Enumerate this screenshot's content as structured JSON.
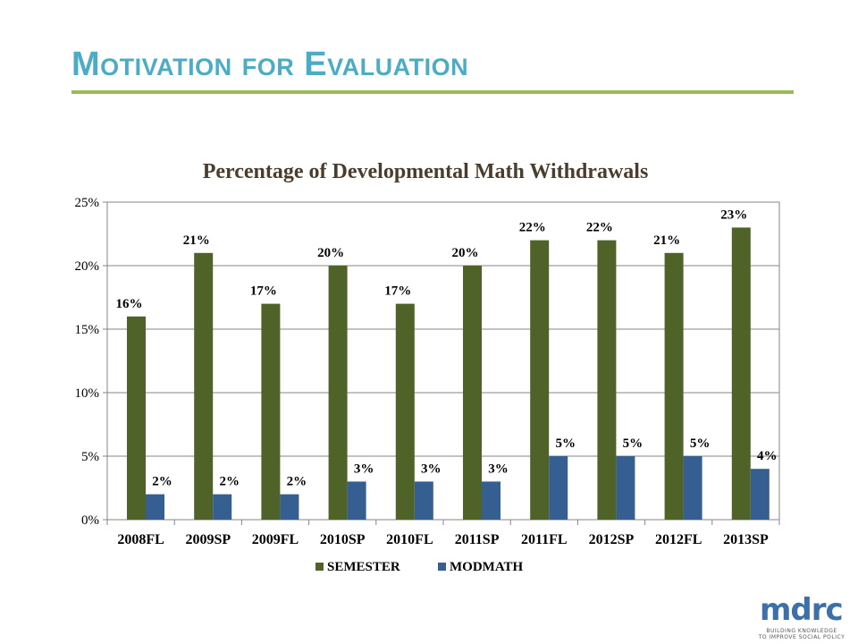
{
  "slide": {
    "title": "Motivation for Evaluation"
  },
  "logo": {
    "word": "mdrc",
    "tagline_1": "BUILDING KNOWLEDGE",
    "tagline_2": "TO IMPROVE SOCIAL POLICY"
  },
  "colors": {
    "title": "#4bacc6",
    "rule": "#9bbb59",
    "semester": "#4f6228",
    "modmath": "#365f91"
  },
  "chart_data": {
    "type": "bar",
    "title": "Percentage of  Developmental Math Withdrawals",
    "categories": [
      "2008FL",
      "2009SP",
      "2009FL",
      "2010SP",
      "2010FL",
      "2011SP",
      "2011FL",
      "2012SP",
      "2012FL",
      "2013SP"
    ],
    "series": [
      {
        "name": "SEMESTER",
        "values": [
          16,
          21,
          17,
          20,
          17,
          20,
          22,
          22,
          21,
          23
        ],
        "labels": [
          "16%",
          "21%",
          "17%",
          "20%",
          "17%",
          "20%",
          "22%",
          "22%",
          "21%",
          "23%"
        ]
      },
      {
        "name": "MODMATH",
        "values": [
          2,
          2,
          2,
          3,
          3,
          3,
          5,
          5,
          5,
          4
        ],
        "labels": [
          "2%",
          "2%",
          "2%",
          "3%",
          "3%",
          "3%",
          "5%",
          "5%",
          "5%",
          "4%"
        ]
      }
    ],
    "ylim": [
      0,
      25
    ],
    "yticks": [
      "0%",
      "5%",
      "10%",
      "15%",
      "20%",
      "25%"
    ],
    "ytick_values": [
      0,
      5,
      10,
      15,
      20,
      25
    ],
    "grid": true,
    "legend": "bottom"
  }
}
